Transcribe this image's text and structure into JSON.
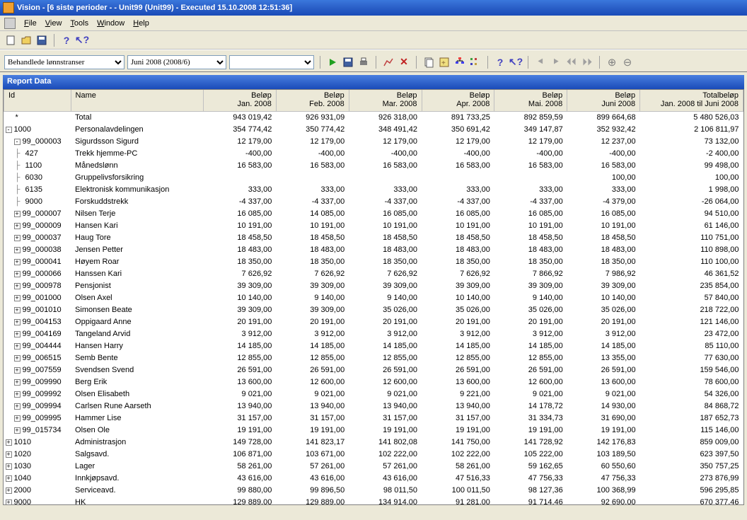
{
  "window": {
    "title": "Vision - [6 siste perioder -  - Unit99 (Unit99) - Executed 15.10.2008 12:51:36]"
  },
  "menu": {
    "file": "File",
    "view": "View",
    "tools": "Tools",
    "window": "Window",
    "help": "Help"
  },
  "combos": {
    "c1": "Behandlede lønnstranser",
    "c2": "Juni 2008 (2008/6)",
    "c3": ""
  },
  "report_header": "Report Data",
  "columns": {
    "id": "Id",
    "name": "Name",
    "jan": "Beløp\nJan. 2008",
    "feb": "Beløp\nFeb. 2008",
    "mar": "Beløp\nMar. 2008",
    "apr": "Beløp\nApr. 2008",
    "mai": "Beløp\nMai. 2008",
    "jun": "Beløp\nJuni 2008",
    "total": "Totalbeløp\nJan. 2008 til Juni 2008"
  },
  "col_widths": {
    "id": 95,
    "name": 190,
    "month": 105,
    "total": 150
  },
  "colors": {
    "titlebar_top": "#3b77dc",
    "titlebar_bottom": "#1a4bb8",
    "menubar_bg": "#ece9d8",
    "header_bg": "#ece9d8",
    "report_hdr_top": "#4a7fe0",
    "report_hdr_bottom": "#1a4bb8",
    "grid_border": "#c0c0c0"
  },
  "rows": [
    {
      "lvl": 0,
      "exp": null,
      "id": "*",
      "name": "Total",
      "v": [
        "943 019,42",
        "926 931,09",
        "926 318,00",
        "891 733,25",
        "892 859,59",
        "899 664,68",
        "5 480 526,03"
      ]
    },
    {
      "lvl": 0,
      "exp": "-",
      "id": "1000",
      "name": "Personalavdelingen",
      "v": [
        "354 774,42",
        "350 774,42",
        "348 491,42",
        "350 691,42",
        "349 147,87",
        "352 932,42",
        "2 106 811,97"
      ]
    },
    {
      "lvl": 1,
      "exp": "-",
      "id": "99_000003",
      "name": "Sigurdsson Sigurd",
      "v": [
        "12 179,00",
        "12 179,00",
        "12 179,00",
        "12 179,00",
        "12 179,00",
        "12 237,00",
        "73 132,00"
      ]
    },
    {
      "lvl": 2,
      "exp": null,
      "id": "427",
      "name": "Trekk hjemme-PC",
      "v": [
        "-400,00",
        "-400,00",
        "-400,00",
        "-400,00",
        "-400,00",
        "-400,00",
        "-2 400,00"
      ]
    },
    {
      "lvl": 2,
      "exp": null,
      "id": "1100",
      "name": "Månedslønn",
      "v": [
        "16 583,00",
        "16 583,00",
        "16 583,00",
        "16 583,00",
        "16 583,00",
        "16 583,00",
        "99 498,00"
      ]
    },
    {
      "lvl": 2,
      "exp": null,
      "id": "6030",
      "name": "Gruppelivsforsikring",
      "v": [
        "",
        "",
        "",
        "",
        "",
        "100,00",
        "100,00"
      ]
    },
    {
      "lvl": 2,
      "exp": null,
      "id": "6135",
      "name": "Elektronisk kommunikasjon",
      "v": [
        "333,00",
        "333,00",
        "333,00",
        "333,00",
        "333,00",
        "333,00",
        "1 998,00"
      ]
    },
    {
      "lvl": 2,
      "exp": null,
      "id": "9000",
      "name": "Forskuddstrekk",
      "v": [
        "-4 337,00",
        "-4 337,00",
        "-4 337,00",
        "-4 337,00",
        "-4 337,00",
        "-4 379,00",
        "-26 064,00"
      ]
    },
    {
      "lvl": 1,
      "exp": "+",
      "id": "99_000007",
      "name": "Nilsen Terje",
      "v": [
        "16 085,00",
        "14 085,00",
        "16 085,00",
        "16 085,00",
        "16 085,00",
        "16 085,00",
        "94 510,00"
      ]
    },
    {
      "lvl": 1,
      "exp": "+",
      "id": "99_000009",
      "name": "Hansen Kari",
      "v": [
        "10 191,00",
        "10 191,00",
        "10 191,00",
        "10 191,00",
        "10 191,00",
        "10 191,00",
        "61 146,00"
      ]
    },
    {
      "lvl": 1,
      "exp": "+",
      "id": "99_000037",
      "name": "Haug Tore",
      "v": [
        "18 458,50",
        "18 458,50",
        "18 458,50",
        "18 458,50",
        "18 458,50",
        "18 458,50",
        "110 751,00"
      ]
    },
    {
      "lvl": 1,
      "exp": "+",
      "id": "99_000038",
      "name": "Jensen Petter",
      "v": [
        "18 483,00",
        "18 483,00",
        "18 483,00",
        "18 483,00",
        "18 483,00",
        "18 483,00",
        "110 898,00"
      ]
    },
    {
      "lvl": 1,
      "exp": "+",
      "id": "99_000041",
      "name": "Høyem Roar",
      "v": [
        "18 350,00",
        "18 350,00",
        "18 350,00",
        "18 350,00",
        "18 350,00",
        "18 350,00",
        "110 100,00"
      ]
    },
    {
      "lvl": 1,
      "exp": "+",
      "id": "99_000066",
      "name": "Hanssen Kari",
      "v": [
        "7 626,92",
        "7 626,92",
        "7 626,92",
        "7 626,92",
        "7 866,92",
        "7 986,92",
        "46 361,52"
      ]
    },
    {
      "lvl": 1,
      "exp": "+",
      "id": "99_000978",
      "name": "Pensjonist",
      "v": [
        "39 309,00",
        "39 309,00",
        "39 309,00",
        "39 309,00",
        "39 309,00",
        "39 309,00",
        "235 854,00"
      ]
    },
    {
      "lvl": 1,
      "exp": "+",
      "id": "99_001000",
      "name": "Olsen Axel",
      "v": [
        "10 140,00",
        "9 140,00",
        "9 140,00",
        "10 140,00",
        "9 140,00",
        "10 140,00",
        "57 840,00"
      ]
    },
    {
      "lvl": 1,
      "exp": "+",
      "id": "99_001010",
      "name": "Simonsen Beate",
      "v": [
        "39 309,00",
        "39 309,00",
        "35 026,00",
        "35 026,00",
        "35 026,00",
        "35 026,00",
        "218 722,00"
      ]
    },
    {
      "lvl": 1,
      "exp": "+",
      "id": "99_004153",
      "name": "Oppigaard Anne",
      "v": [
        "20 191,00",
        "20 191,00",
        "20 191,00",
        "20 191,00",
        "20 191,00",
        "20 191,00",
        "121 146,00"
      ]
    },
    {
      "lvl": 1,
      "exp": "+",
      "id": "99_004169",
      "name": "Tangeland Arvid",
      "v": [
        "3 912,00",
        "3 912,00",
        "3 912,00",
        "3 912,00",
        "3 912,00",
        "3 912,00",
        "23 472,00"
      ]
    },
    {
      "lvl": 1,
      "exp": "+",
      "id": "99_004444",
      "name": "Hansen Harry",
      "v": [
        "14 185,00",
        "14 185,00",
        "14 185,00",
        "14 185,00",
        "14 185,00",
        "14 185,00",
        "85 110,00"
      ]
    },
    {
      "lvl": 1,
      "exp": "+",
      "id": "99_006515",
      "name": "Semb Bente",
      "v": [
        "12 855,00",
        "12 855,00",
        "12 855,00",
        "12 855,00",
        "12 855,00",
        "13 355,00",
        "77 630,00"
      ]
    },
    {
      "lvl": 1,
      "exp": "+",
      "id": "99_007559",
      "name": "Svendsen Svend",
      "v": [
        "26 591,00",
        "26 591,00",
        "26 591,00",
        "26 591,00",
        "26 591,00",
        "26 591,00",
        "159 546,00"
      ]
    },
    {
      "lvl": 1,
      "exp": "+",
      "id": "99_009990",
      "name": "Berg Erik",
      "v": [
        "13 600,00",
        "12 600,00",
        "12 600,00",
        "13 600,00",
        "12 600,00",
        "13 600,00",
        "78 600,00"
      ]
    },
    {
      "lvl": 1,
      "exp": "+",
      "id": "99_009992",
      "name": "Olsen Elisabeth",
      "v": [
        "9 021,00",
        "9 021,00",
        "9 021,00",
        "9 221,00",
        "9 021,00",
        "9 021,00",
        "54 326,00"
      ]
    },
    {
      "lvl": 1,
      "exp": "+",
      "id": "99_009994",
      "name": "Carlsen Rune Aarseth",
      "v": [
        "13 940,00",
        "13 940,00",
        "13 940,00",
        "13 940,00",
        "14 178,72",
        "14 930,00",
        "84 868,72"
      ]
    },
    {
      "lvl": 1,
      "exp": "+",
      "id": "99_009995",
      "name": "Hammer Lise",
      "v": [
        "31 157,00",
        "31 157,00",
        "31 157,00",
        "31 157,00",
        "31 334,73",
        "31 690,00",
        "187 652,73"
      ]
    },
    {
      "lvl": 1,
      "exp": "+",
      "id": "99_015734",
      "name": "Olsen Ole",
      "v": [
        "19 191,00",
        "19 191,00",
        "19 191,00",
        "19 191,00",
        "19 191,00",
        "19 191,00",
        "115 146,00"
      ]
    },
    {
      "lvl": 0,
      "exp": "+",
      "id": "1010",
      "name": "Administrasjon",
      "v": [
        "149 728,00",
        "141 823,17",
        "141 802,08",
        "141 750,00",
        "141 728,92",
        "142 176,83",
        "859 009,00"
      ]
    },
    {
      "lvl": 0,
      "exp": "+",
      "id": "1020",
      "name": "Salgsavd.",
      "v": [
        "106 871,00",
        "103 671,00",
        "102 222,00",
        "102 222,00",
        "105 222,00",
        "103 189,50",
        "623 397,50"
      ]
    },
    {
      "lvl": 0,
      "exp": "+",
      "id": "1030",
      "name": "Lager",
      "v": [
        "58 261,00",
        "57 261,00",
        "57 261,00",
        "58 261,00",
        "59 162,65",
        "60 550,60",
        "350 757,25"
      ]
    },
    {
      "lvl": 0,
      "exp": "+",
      "id": "1040",
      "name": "Innkjøpsavd.",
      "v": [
        "43 616,00",
        "43 616,00",
        "43 616,00",
        "47 516,33",
        "47 756,33",
        "47 756,33",
        "273 876,99"
      ]
    },
    {
      "lvl": 0,
      "exp": "+",
      "id": "2000",
      "name": "Serviceavd.",
      "v": [
        "99 880,00",
        "99 896,50",
        "98 011,50",
        "100 011,50",
        "98 127,36",
        "100 368,99",
        "596 295,85"
      ]
    },
    {
      "lvl": 0,
      "exp": "+",
      "id": "9000",
      "name": "HK",
      "v": [
        "129 889,00",
        "129 889,00",
        "134 914,00",
        "91 281,00",
        "91 714,46",
        "92 690,00",
        "670 377,46"
      ]
    }
  ]
}
